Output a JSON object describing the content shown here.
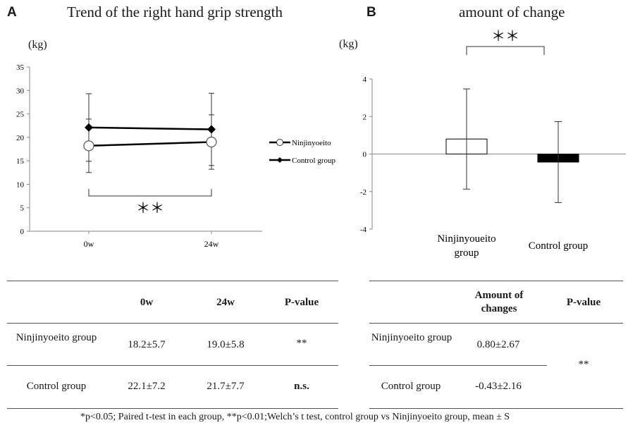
{
  "panel_a": {
    "letter": "A",
    "title": "Trend of the right hand grip strength",
    "unit": "(kg)",
    "table": {
      "headers": [
        "",
        "0w",
        "24w",
        "P-value"
      ],
      "rows": [
        {
          "label": "Ninjinyoeito group",
          "v0": "18.2±5.7",
          "v24": "19.0±5.8",
          "p": "**"
        },
        {
          "label": "Control group",
          "v0": "22.1±7.2",
          "v24": "21.7±7.7",
          "p": "n.s."
        }
      ]
    }
  },
  "panel_b": {
    "letter": "B",
    "title": "amount of change",
    "unit": "(kg)",
    "table": {
      "headers": [
        "",
        "Amount of changes",
        "P-value"
      ],
      "rows": [
        {
          "label": "Ninjinyoeito group",
          "value": "0.80±2.67"
        },
        {
          "label": "Control group",
          "value": "-0.43±2.16"
        }
      ],
      "p": "**"
    }
  },
  "footnote": "*p<0.05; Paired t-test in each group, **p<0.01;Welch’s t test, control group vs Ninjinyoeito group, mean ± S",
  "chart_data": [
    {
      "type": "line",
      "title": "Trend of the right hand grip strength",
      "ylabel": "(kg)",
      "x": [
        "0w",
        "24w"
      ],
      "ylim": [
        0,
        35
      ],
      "yticks": [
        0,
        5,
        10,
        15,
        20,
        25,
        30,
        35
      ],
      "series": [
        {
          "name": "Ninjinyoeito",
          "values": [
            18.2,
            19.0
          ],
          "errors": [
            5.7,
            5.8
          ],
          "marker": "open-circle"
        },
        {
          "name": "Control group",
          "values": [
            22.1,
            21.7
          ],
          "errors": [
            7.2,
            7.7
          ],
          "marker": "filled-diamond"
        }
      ],
      "annotation": "＊＊",
      "legend": "right",
      "grid": false
    },
    {
      "type": "bar",
      "title": "amount of change",
      "ylabel": "(kg)",
      "categories": [
        "Ninjinyoeito group",
        "Control group"
      ],
      "values": [
        0.8,
        -0.43
      ],
      "errors": [
        2.67,
        2.16
      ],
      "fills": [
        "#ffffff",
        "#000000"
      ],
      "ylim": [
        -4,
        4
      ],
      "yticks": [
        -4,
        -2,
        0,
        2,
        4
      ],
      "annotation": "＊＊",
      "grid": false
    }
  ]
}
